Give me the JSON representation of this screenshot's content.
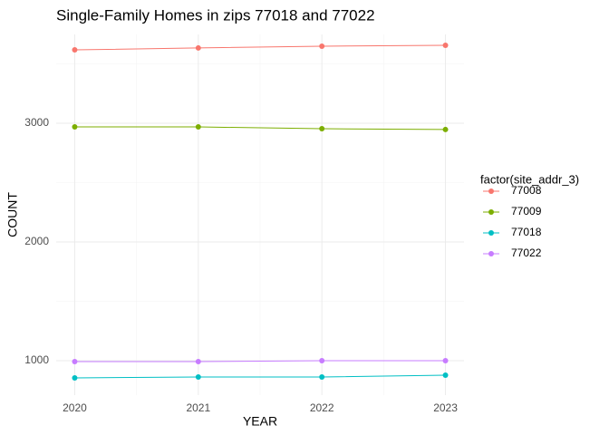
{
  "chart_data": {
    "type": "line",
    "title": "Single-Family Homes in zips 77018 and 77022",
    "x_label": "YEAR",
    "y_label": "COUNT",
    "legend_title": "factor(site_addr_3)",
    "x": [
      2020,
      2021,
      2022,
      2023
    ],
    "series": [
      {
        "name": "77008",
        "color": "#F8766D",
        "values": [
          3618,
          3634,
          3649,
          3656
        ]
      },
      {
        "name": "77009",
        "color": "#7CAE00",
        "values": [
          2969,
          2969,
          2954,
          2947
        ]
      },
      {
        "name": "77018",
        "color": "#00BFC4",
        "values": [
          855,
          863,
          863,
          878
        ]
      },
      {
        "name": "77022",
        "color": "#C77CFF",
        "values": [
          992,
          992,
          1000,
          1000
        ]
      }
    ],
    "xlim": [
      2019.85,
      2023.15
    ],
    "xticks": [
      2020,
      2021,
      2022,
      2023
    ],
    "ylim": [
      710,
      3748
    ],
    "yticks": [
      1000,
      2000,
      3000
    ],
    "grid": true,
    "legend": "right"
  }
}
